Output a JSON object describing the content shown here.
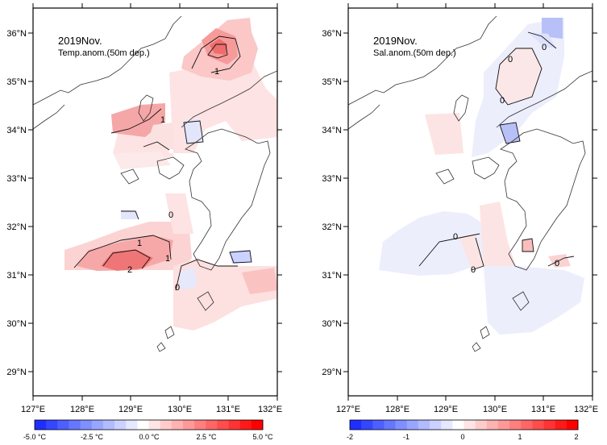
{
  "colors": {
    "frame": "#000000",
    "coast": "#333333",
    "temp_scale": [
      "#1f2dff",
      "#3546ff",
      "#4d5fff",
      "#6677ff",
      "#7f8fff",
      "#99a6ff",
      "#b2bbff",
      "#ccd2ff",
      "#e5e8ff",
      "#ffffff",
      "#ffe5e5",
      "#ffcccc",
      "#ffb2b2",
      "#ff9999",
      "#ff7f7f",
      "#ff6666",
      "#ff4c4c",
      "#ff3333",
      "#ff1a1a",
      "#ff0000"
    ],
    "sal_scale": [
      "#1f2dff",
      "#3546ff",
      "#4d5fff",
      "#6677ff",
      "#7f8fff",
      "#99a6ff",
      "#b2bbff",
      "#ccd2ff",
      "#e5e8ff",
      "#ffffff",
      "#ffe5e5",
      "#ffcccc",
      "#ffb2b2",
      "#ff9999",
      "#ff7f7f",
      "#ff6666",
      "#ff4c4c",
      "#ff3333",
      "#ff1a1a",
      "#ff0000"
    ]
  },
  "left_panel": {
    "title": "2019Nov.",
    "subtitle": "Temp.anom.(50m dep.)",
    "lat_labels": [
      "36°N",
      "35°N",
      "34°N",
      "33°N",
      "32°N",
      "31°N",
      "30°N",
      "29°N"
    ],
    "lon_labels": [
      "127°E",
      "128°E",
      "129°E",
      "130°E",
      "131°E",
      "132°E"
    ],
    "contour_labels": [
      "1",
      "1",
      "0",
      "1",
      "2",
      "1",
      "0"
    ],
    "colorbar_labels": [
      "-5.0 °C",
      "-2.5 °C",
      "0.0 °C",
      "2.5 °C",
      "5.0 °C"
    ]
  },
  "right_panel": {
    "title": "2019Nov.",
    "subtitle": "Sal.anom.(50m dep.)",
    "lat_labels": [
      "36°N",
      "35°N",
      "34°N",
      "33°N",
      "32°N",
      "31°N",
      "30°N",
      "29°N"
    ],
    "lon_labels": [
      "127°E",
      "128°E",
      "129°E",
      "130°E",
      "131°E",
      "132°E"
    ],
    "contour_labels": [
      "0",
      "0",
      "0",
      "0",
      "0",
      "0"
    ],
    "colorbar_labels": [
      "-2",
      "-1",
      "0",
      "1",
      "2"
    ]
  }
}
